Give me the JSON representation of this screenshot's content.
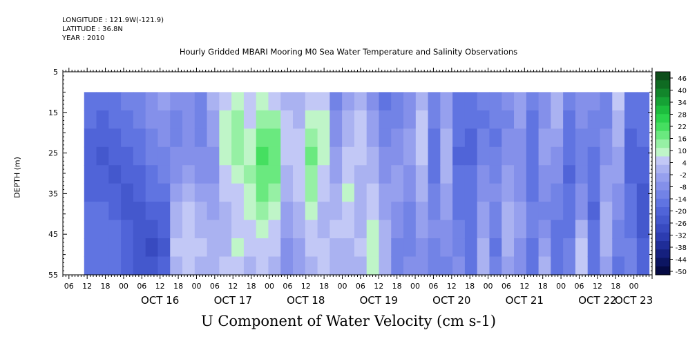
{
  "header": {
    "longitude": "LONGITUDE : 121.9W(-121.9)",
    "latitude": "LATITUDE : 36.8N",
    "year": "YEAR : 2010"
  },
  "chart_data": {
    "type": "heatmap",
    "title": "Hourly Gridded MBARI Mooring M0 Sea Water Temperature and Salinity Observations",
    "bottom_title": "U Component of Water Velocity (cm s-1)",
    "ylabel": "DEPTH (m)",
    "xlabel": "",
    "y_axis": {
      "range": [
        5,
        55
      ],
      "inverted": true,
      "ticks": [
        5,
        15,
        25,
        35,
        45,
        55
      ],
      "data_depth_range": [
        10,
        55
      ]
    },
    "x_axis": {
      "start": "2010-10-15T04:00",
      "end": "2010-10-23T06:00",
      "hour_ticks": [
        {
          "t": "2010-10-15T06:00",
          "label": "06"
        },
        {
          "t": "2010-10-15T12:00",
          "label": "12"
        },
        {
          "t": "2010-10-15T18:00",
          "label": "18"
        },
        {
          "t": "2010-10-16T00:00",
          "label": "00"
        },
        {
          "t": "2010-10-16T06:00",
          "label": "06"
        },
        {
          "t": "2010-10-16T12:00",
          "label": "12"
        },
        {
          "t": "2010-10-16T18:00",
          "label": "18"
        },
        {
          "t": "2010-10-17T00:00",
          "label": "00"
        },
        {
          "t": "2010-10-17T06:00",
          "label": "06"
        },
        {
          "t": "2010-10-17T12:00",
          "label": "12"
        },
        {
          "t": "2010-10-17T18:00",
          "label": "18"
        },
        {
          "t": "2010-10-18T00:00",
          "label": "00"
        },
        {
          "t": "2010-10-18T06:00",
          "label": "06"
        },
        {
          "t": "2010-10-18T12:00",
          "label": "12"
        },
        {
          "t": "2010-10-18T18:00",
          "label": "18"
        },
        {
          "t": "2010-10-19T00:00",
          "label": "00"
        },
        {
          "t": "2010-10-19T06:00",
          "label": "06"
        },
        {
          "t": "2010-10-19T12:00",
          "label": "12"
        },
        {
          "t": "2010-10-19T18:00",
          "label": "18"
        },
        {
          "t": "2010-10-20T00:00",
          "label": "00"
        },
        {
          "t": "2010-10-20T06:00",
          "label": "06"
        },
        {
          "t": "2010-10-20T12:00",
          "label": "12"
        },
        {
          "t": "2010-10-20T18:00",
          "label": "18"
        },
        {
          "t": "2010-10-21T00:00",
          "label": "00"
        },
        {
          "t": "2010-10-21T06:00",
          "label": "06"
        },
        {
          "t": "2010-10-21T12:00",
          "label": "12"
        },
        {
          "t": "2010-10-21T18:00",
          "label": "18"
        },
        {
          "t": "2010-10-22T00:00",
          "label": "00"
        },
        {
          "t": "2010-10-22T06:00",
          "label": "06"
        },
        {
          "t": "2010-10-22T12:00",
          "label": "12"
        },
        {
          "t": "2010-10-22T18:00",
          "label": "18"
        },
        {
          "t": "2010-10-23T00:00",
          "label": "00"
        }
      ],
      "date_labels": [
        {
          "t": "2010-10-16T12:00",
          "label": "OCT 16"
        },
        {
          "t": "2010-10-17T12:00",
          "label": "OCT 17"
        },
        {
          "t": "2010-10-18T12:00",
          "label": "OCT 18"
        },
        {
          "t": "2010-10-19T12:00",
          "label": "OCT 19"
        },
        {
          "t": "2010-10-20T12:00",
          "label": "OCT 20"
        },
        {
          "t": "2010-10-21T12:00",
          "label": "OCT 21"
        },
        {
          "t": "2010-10-22T12:00",
          "label": "OCT 22"
        },
        {
          "t": "2010-10-23T00:00",
          "label": "OCT 23"
        }
      ]
    },
    "data_time_range": [
      "2010-10-15T11:00",
      "2010-10-23T05:00"
    ],
    "colorbar": {
      "labels": [
        "46",
        "40",
        "34",
        "28",
        "22",
        "16",
        "10",
        "4",
        "-2",
        "-8",
        "-14",
        "-20",
        "-26",
        "-32",
        "-38",
        "-44",
        "-50"
      ],
      "colors": [
        "#0d4d1a",
        "#0f6b22",
        "#12862b",
        "#16a235",
        "#1dbd3e",
        "#2bd34c",
        "#45df60",
        "#6ae97f",
        "#96f0a4",
        "#bff5c8",
        "#c2c8f6",
        "#aab2f1",
        "#96a0ee",
        "#8490ea",
        "#7283e6",
        "#6074e1",
        "#5064d8",
        "#4458cd",
        "#384ac0",
        "#2c3cb0",
        "#1f2d98",
        "#15207e",
        "#0c1562",
        "#050a44"
      ]
    },
    "columns": [
      [
        -14,
        -16,
        -18,
        -20,
        -20,
        -18,
        -16,
        -16,
        -14,
        -14
      ],
      [
        -16,
        -18,
        -20,
        -22,
        -20,
        -18,
        -16,
        -14,
        -14,
        -14
      ],
      [
        -12,
        -16,
        -18,
        -20,
        -22,
        -20,
        -18,
        -16,
        -16,
        -16
      ],
      [
        -10,
        -14,
        -16,
        -18,
        -20,
        -22,
        -22,
        -20,
        -20,
        -18
      ],
      [
        -8,
        -10,
        -12,
        -14,
        -18,
        -20,
        -24,
        -24,
        -22,
        -22
      ],
      [
        -6,
        -6,
        -8,
        -10,
        -12,
        -16,
        -20,
        -24,
        -26,
        -24
      ],
      [
        -2,
        -4,
        -6,
        -8,
        -10,
        -14,
        -18,
        -20,
        -22,
        -20
      ],
      [
        -6,
        -8,
        -8,
        -6,
        -4,
        -2,
        2,
        4,
        6,
        4
      ],
      [
        -4,
        -6,
        -6,
        -4,
        -2,
        2,
        6,
        8,
        8,
        6
      ],
      [
        -10,
        -10,
        -8,
        -6,
        -4,
        -2,
        2,
        4,
        6,
        4
      ],
      [
        2,
        0,
        -2,
        -4,
        -4,
        -2,
        0,
        2,
        4,
        2
      ],
      [
        8,
        10,
        12,
        10,
        8,
        6,
        4,
        2,
        4,
        6
      ],
      [
        10,
        14,
        16,
        14,
        10,
        8,
        6,
        8,
        10,
        8
      ],
      [
        6,
        8,
        10,
        12,
        14,
        12,
        10,
        8,
        6,
        4
      ],
      [
        12,
        16,
        20,
        24,
        22,
        18,
        14,
        10,
        8,
        6
      ],
      [
        8,
        14,
        18,
        22,
        20,
        16,
        12,
        8,
        6,
        4
      ],
      [
        4,
        6,
        8,
        6,
        4,
        2,
        0,
        -2,
        -4,
        -6
      ],
      [
        2,
        4,
        6,
        8,
        8,
        6,
        4,
        2,
        0,
        -2
      ],
      [
        8,
        12,
        16,
        18,
        16,
        14,
        10,
        8,
        6,
        4
      ],
      [
        6,
        10,
        12,
        10,
        8,
        6,
        4,
        4,
        6,
        8
      ],
      [
        -8,
        -6,
        -4,
        -2,
        0,
        2,
        4,
        6,
        4,
        2
      ],
      [
        0,
        2,
        4,
        6,
        8,
        10,
        8,
        6,
        4,
        2
      ],
      [
        4,
        6,
        8,
        6,
        4,
        2,
        2,
        4,
        6,
        4
      ],
      [
        -4,
        -2,
        0,
        2,
        4,
        6,
        8,
        10,
        12,
        10
      ],
      [
        -12,
        -10,
        -8,
        -6,
        -4,
        -2,
        0,
        2,
        4,
        2
      ],
      [
        -10,
        -8,
        -6,
        -4,
        -2,
        -2,
        -4,
        -6,
        -8,
        -10
      ],
      [
        -6,
        -4,
        -2,
        -2,
        -4,
        -6,
        -8,
        -10,
        -8,
        -6
      ],
      [
        4,
        6,
        8,
        6,
        4,
        2,
        0,
        -2,
        -4,
        -6
      ],
      [
        -8,
        -10,
        -12,
        -14,
        -12,
        -10,
        -8,
        -6,
        -8,
        -10
      ],
      [
        -2,
        0,
        2,
        4,
        2,
        0,
        -2,
        -4,
        -6,
        -8
      ],
      [
        -12,
        -14,
        -16,
        -18,
        -16,
        -14,
        -12,
        -10,
        -8,
        -6
      ],
      [
        -14,
        -16,
        -18,
        -18,
        -16,
        -14,
        -12,
        -12,
        -14,
        -16
      ],
      [
        -10,
        -12,
        -10,
        -8,
        -6,
        -4,
        -2,
        0,
        2,
        4
      ],
      [
        -8,
        -10,
        -12,
        -10,
        -8,
        -6,
        -8,
        -10,
        -12,
        -10
      ],
      [
        -6,
        -8,
        -6,
        -4,
        -2,
        0,
        2,
        4,
        2,
        0
      ],
      [
        0,
        -2,
        -4,
        -6,
        -6,
        -4,
        -2,
        -2,
        -4,
        -6
      ],
      [
        -10,
        -12,
        -14,
        -16,
        -14,
        -12,
        -10,
        -10,
        -12,
        -14
      ],
      [
        -6,
        -4,
        -2,
        -2,
        -4,
        -6,
        -8,
        -4,
        0,
        2
      ],
      [
        4,
        2,
        0,
        -4,
        -6,
        -8,
        -10,
        -12,
        -14,
        -12
      ],
      [
        -10,
        -12,
        -14,
        -16,
        -18,
        -16,
        -14,
        -12,
        -10,
        -8
      ],
      [
        -4,
        -6,
        -8,
        -10,
        -8,
        -6,
        -4,
        2,
        6,
        8
      ],
      [
        -6,
        -8,
        -10,
        -12,
        -14,
        -16,
        -18,
        -16,
        -14,
        -12
      ],
      [
        -10,
        -8,
        -6,
        -4,
        -2,
        0,
        2,
        4,
        2,
        0
      ],
      [
        6,
        4,
        2,
        0,
        -2,
        -4,
        -6,
        -8,
        -10,
        -12
      ],
      [
        -14,
        -16,
        -18,
        -20,
        -18,
        -16,
        -14,
        -12,
        -10,
        -8
      ],
      [
        -12,
        -14,
        -16,
        -18,
        -20,
        -22,
        -24,
        -22,
        -20,
        -18
      ]
    ]
  }
}
